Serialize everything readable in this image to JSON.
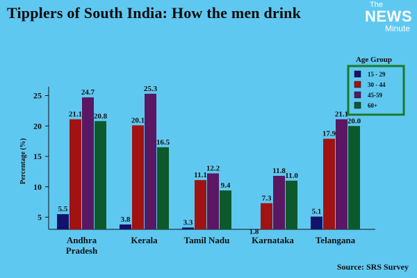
{
  "header": {
    "title": "Tipplers of South India: How the men drink",
    "logo_line1": "The",
    "logo_line2": "NEWS",
    "logo_line3": "Minute"
  },
  "footer": {
    "source": "Source: SRS Survey"
  },
  "colors": {
    "background": "#5fc8f0",
    "legend_border": "#1a7a2a",
    "series": [
      "#13136b",
      "#a11212",
      "#5a1763",
      "#0c5a2c"
    ]
  },
  "chart_data": {
    "type": "bar",
    "title": "Tipplers of South India: How the men drink",
    "ylabel": "Percentage (%)",
    "xlabel": "",
    "ylim": [
      3,
      26
    ],
    "yticks": [
      5,
      10,
      15,
      20,
      25
    ],
    "grid": false,
    "legend": {
      "title": "Age Group",
      "placement": "top-right"
    },
    "categories": [
      [
        "Andhra",
        "Pradesh"
      ],
      [
        "Kerala"
      ],
      [
        "Tamil Nadu"
      ],
      [
        "Karnataka"
      ],
      [
        "Telangana"
      ]
    ],
    "series": [
      {
        "name": "15 - 29",
        "values": [
          5.5,
          3.8,
          3.3,
          1.8,
          5.1
        ]
      },
      {
        "name": "30 - 44",
        "values": [
          21.1,
          20.1,
          11.1,
          7.3,
          17.9
        ]
      },
      {
        "name": "45-59",
        "values": [
          24.7,
          25.3,
          12.2,
          11.8,
          21.1
        ]
      },
      {
        "name": "60+",
        "values": [
          20.8,
          16.5,
          9.4,
          11.0,
          20.0
        ]
      }
    ],
    "data_labels": [
      [
        "5.5",
        "3.8",
        "3.3",
        "1.8",
        "5.1"
      ],
      [
        "21.1",
        "20.1",
        "11.1",
        "7.3",
        "17.9"
      ],
      [
        "24.7",
        "25.3",
        "12.2",
        "11.8",
        "21.1"
      ],
      [
        "20.8",
        "16.5",
        "9.4",
        "11.0",
        "20.0"
      ]
    ]
  }
}
